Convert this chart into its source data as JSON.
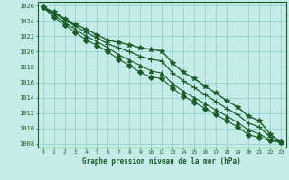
{
  "title": "Graphe pression niveau de la mer (hPa)",
  "background_color": "#c5ece8",
  "grid_color": "#8ecec8",
  "line_color": "#1a5c2a",
  "ylim": [
    1007.5,
    1026.5
  ],
  "yticks": [
    1008,
    1010,
    1012,
    1014,
    1016,
    1018,
    1020,
    1022,
    1024,
    1026
  ],
  "x_hours": [
    0,
    1,
    2,
    3,
    4,
    5,
    6,
    7,
    8,
    9,
    10,
    11,
    13,
    14,
    15,
    16,
    17,
    18,
    19,
    20,
    21,
    22,
    23
  ],
  "series": [
    [
      1025.8,
      1025.2,
      1024.3,
      1023.6,
      1022.9,
      1022.2,
      1021.5,
      1021.2,
      1020.9,
      1020.5,
      1020.3,
      1020.1,
      1018.5,
      1017.3,
      1016.5,
      1015.5,
      1014.6,
      1013.6,
      1012.8,
      1011.6,
      1011.0,
      1009.3,
      1008.2
    ],
    [
      1025.8,
      1025.0,
      1024.2,
      1023.3,
      1022.5,
      1021.8,
      1021.0,
      1020.5,
      1020.0,
      1019.4,
      1019.0,
      1018.8,
      1017.2,
      1016.2,
      1015.3,
      1014.4,
      1013.5,
      1012.6,
      1011.8,
      1010.7,
      1010.2,
      1008.9,
      1008.2
    ],
    [
      1025.8,
      1024.8,
      1023.8,
      1022.9,
      1022.0,
      1021.3,
      1020.5,
      1019.6,
      1018.9,
      1018.2,
      1017.5,
      1017.2,
      1015.8,
      1014.8,
      1014.0,
      1013.2,
      1012.4,
      1011.6,
      1010.8,
      1009.8,
      1009.3,
      1008.5,
      1008.2
    ],
    [
      1025.8,
      1024.5,
      1023.5,
      1022.5,
      1021.5,
      1020.8,
      1020.0,
      1019.0,
      1018.2,
      1017.3,
      1016.7,
      1016.5,
      1015.2,
      1014.2,
      1013.4,
      1012.6,
      1011.8,
      1011.0,
      1010.2,
      1009.2,
      1008.8,
      1008.4,
      1008.2
    ]
  ],
  "markers": [
    "*",
    "+",
    "^",
    "D"
  ],
  "marker_sizes": [
    4,
    5,
    3,
    3
  ],
  "linewidths": [
    1.0,
    0.9,
    0.8,
    0.8
  ]
}
